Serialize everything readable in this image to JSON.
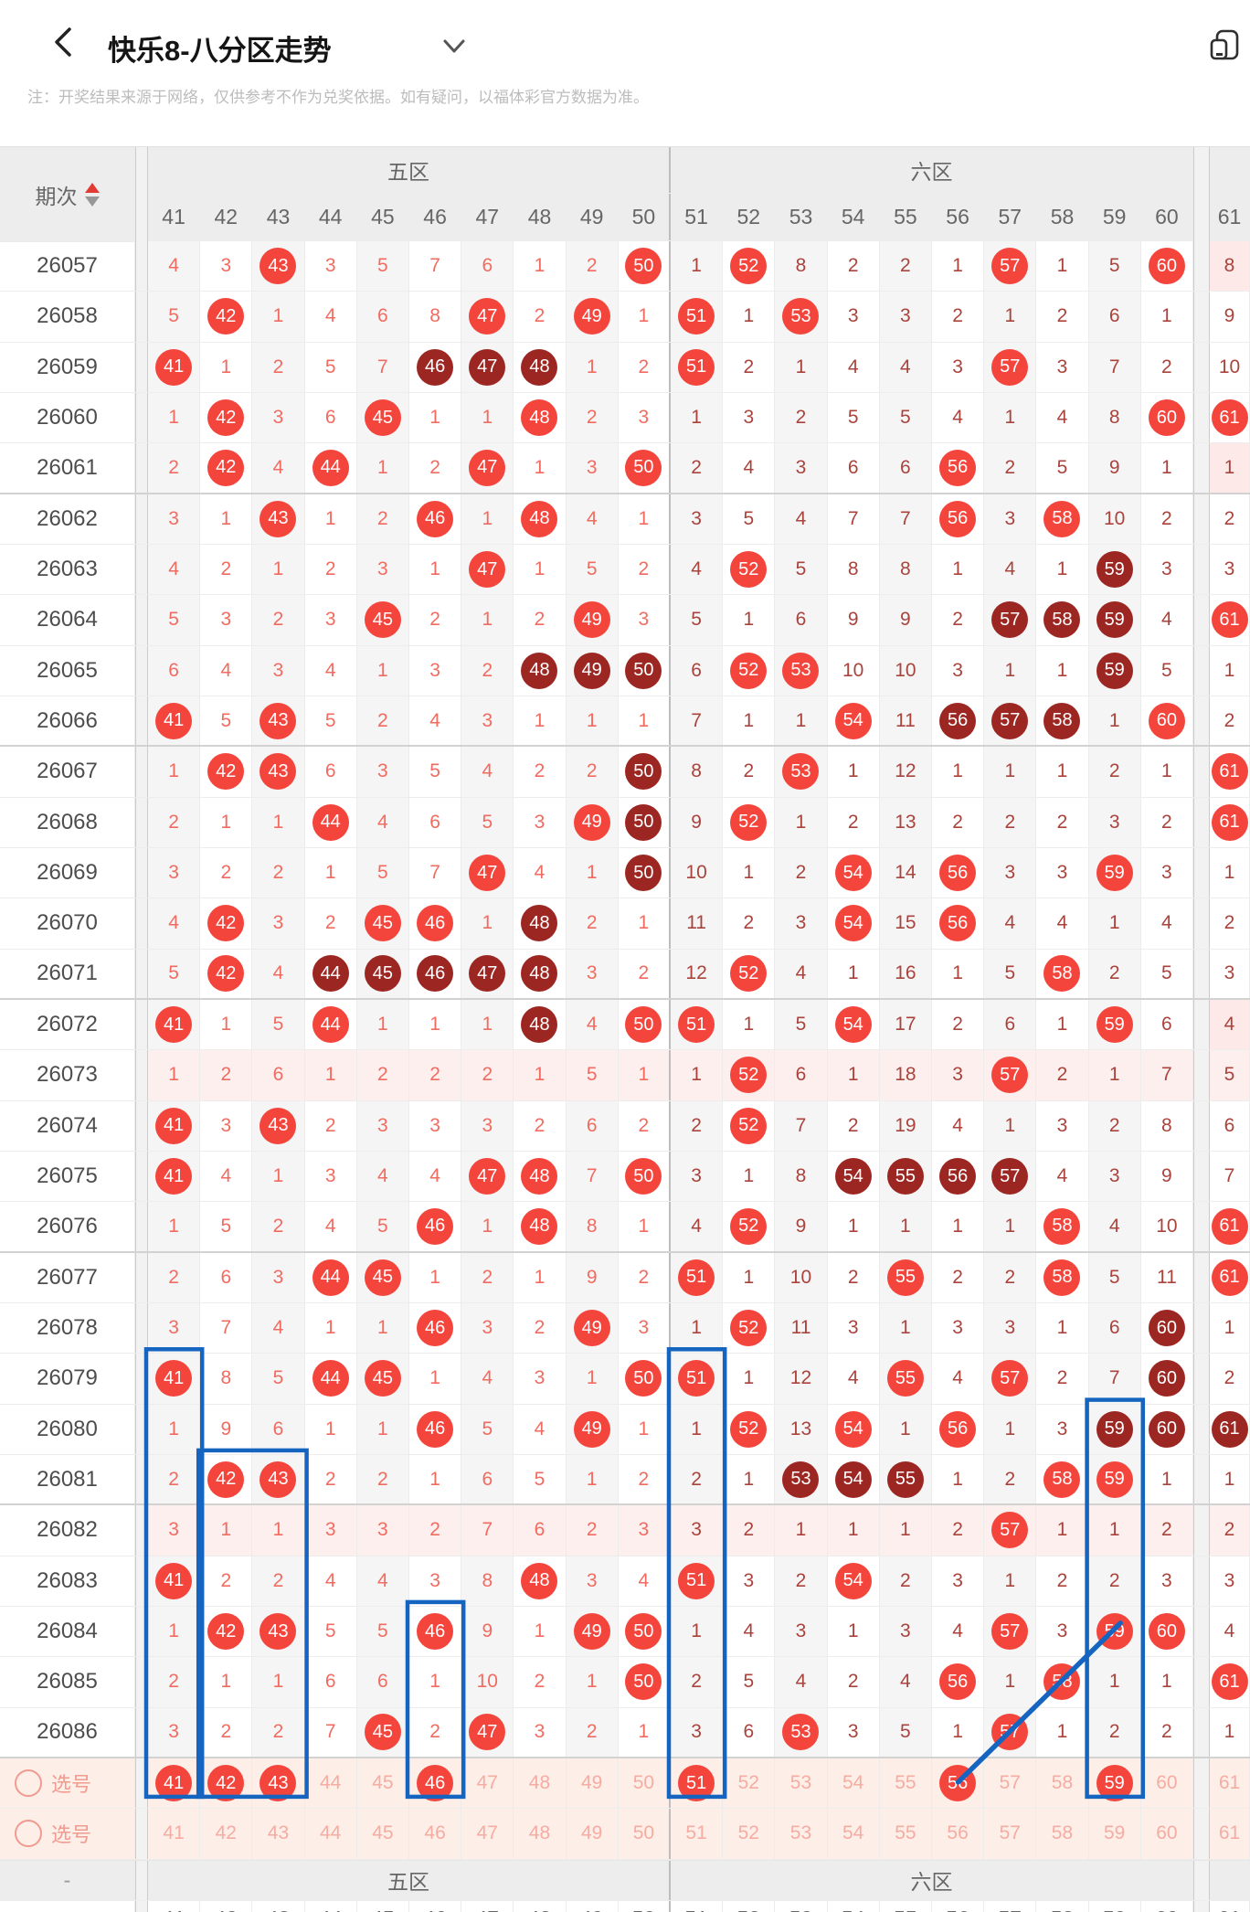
{
  "header": {
    "title": "快乐8-八分区走势"
  },
  "notice": "注：开奖结果来源于网络，仅供参考不作为兑奖依据。如有疑问，以福体彩官方数据为准。",
  "table": {
    "period_header": "期次",
    "zones": [
      {
        "label": "五区",
        "col_from": 41,
        "col_to": 50
      },
      {
        "label": "六区",
        "col_from": 51,
        "col_to": 61
      }
    ],
    "columns": [
      "41",
      "42",
      "43",
      "44",
      "45",
      "46",
      "47",
      "48",
      "49",
      "50",
      "51",
      "52",
      "53",
      "54",
      "55",
      "56",
      "57",
      "58",
      "59",
      "60",
      "61"
    ],
    "footer_dash": "-",
    "rows": [
      {
        "period": "26057",
        "pink61": true,
        "cells": [
          "4",
          "3",
          "h43",
          "3",
          "5",
          "7",
          "6",
          "1",
          "2",
          "h50",
          "1",
          "h52",
          "8",
          "2",
          "2",
          "1",
          "h57",
          "1",
          "5",
          "h60",
          "8"
        ]
      },
      {
        "period": "26058",
        "cells": [
          "5",
          "h42",
          "1",
          "4",
          "6",
          "8",
          "h47",
          "2",
          "h49",
          "1",
          "h51",
          "1",
          "h53",
          "3",
          "3",
          "2",
          "1",
          "2",
          "6",
          "1",
          "9"
        ]
      },
      {
        "period": "26059",
        "cells": [
          "h41",
          "1",
          "2",
          "5",
          "7",
          "d46",
          "d47",
          "d48",
          "1",
          "2",
          "h51",
          "2",
          "1",
          "4",
          "4",
          "3",
          "h57",
          "3",
          "7",
          "2",
          "10"
        ]
      },
      {
        "period": "26060",
        "cells": [
          "1",
          "h42",
          "3",
          "6",
          "h45",
          "1",
          "1",
          "h48",
          "2",
          "3",
          "1",
          "3",
          "2",
          "5",
          "5",
          "4",
          "1",
          "4",
          "8",
          "h60",
          "h61"
        ]
      },
      {
        "period": "26061",
        "pink61": true,
        "sep": true,
        "cells": [
          "2",
          "h42",
          "4",
          "h44",
          "1",
          "2",
          "h47",
          "1",
          "3",
          "h50",
          "2",
          "4",
          "3",
          "6",
          "6",
          "h56",
          "2",
          "5",
          "9",
          "1",
          "1"
        ]
      },
      {
        "period": "26062",
        "cells": [
          "3",
          "1",
          "h43",
          "1",
          "2",
          "h46",
          "1",
          "h48",
          "4",
          "1",
          "3",
          "5",
          "4",
          "7",
          "7",
          "h56",
          "3",
          "h58",
          "10",
          "2",
          "2"
        ]
      },
      {
        "period": "26063",
        "cells": [
          "4",
          "2",
          "1",
          "2",
          "3",
          "1",
          "h47",
          "1",
          "5",
          "2",
          "4",
          "h52",
          "5",
          "8",
          "8",
          "1",
          "4",
          "1",
          "d59",
          "3",
          "3"
        ]
      },
      {
        "period": "26064",
        "cells": [
          "5",
          "3",
          "2",
          "3",
          "h45",
          "2",
          "1",
          "2",
          "h49",
          "3",
          "5",
          "1",
          "6",
          "9",
          "9",
          "2",
          "d57",
          "d58",
          "d59",
          "4",
          "h61"
        ]
      },
      {
        "period": "26065",
        "cells": [
          "6",
          "4",
          "3",
          "4",
          "1",
          "3",
          "2",
          "d48",
          "d49",
          "d50",
          "6",
          "h52",
          "h53",
          "10",
          "10",
          "3",
          "1",
          "1",
          "d59",
          "5",
          "1"
        ]
      },
      {
        "period": "26066",
        "sep": true,
        "cells": [
          "h41",
          "5",
          "h43",
          "5",
          "2",
          "4",
          "3",
          "1",
          "1",
          "1",
          "7",
          "1",
          "1",
          "h54",
          "11",
          "d56",
          "d57",
          "d58",
          "1",
          "h60",
          "2"
        ]
      },
      {
        "period": "26067",
        "cells": [
          "1",
          "h42",
          "h43",
          "6",
          "3",
          "5",
          "4",
          "2",
          "2",
          "d50",
          "8",
          "2",
          "h53",
          "1",
          "12",
          "1",
          "1",
          "1",
          "2",
          "1",
          "h61"
        ]
      },
      {
        "period": "26068",
        "cells": [
          "2",
          "1",
          "1",
          "h44",
          "4",
          "6",
          "5",
          "3",
          "h49",
          "d50",
          "9",
          "h52",
          "1",
          "2",
          "13",
          "2",
          "2",
          "2",
          "3",
          "2",
          "h61"
        ]
      },
      {
        "period": "26069",
        "cells": [
          "3",
          "2",
          "2",
          "1",
          "5",
          "7",
          "h47",
          "4",
          "1",
          "d50",
          "10",
          "1",
          "2",
          "h54",
          "14",
          "h56",
          "3",
          "3",
          "h59",
          "3",
          "1"
        ]
      },
      {
        "period": "26070",
        "cells": [
          "4",
          "h42",
          "3",
          "2",
          "h45",
          "h46",
          "1",
          "d48",
          "2",
          "1",
          "11",
          "2",
          "3",
          "h54",
          "15",
          "h56",
          "4",
          "4",
          "1",
          "4",
          "2"
        ]
      },
      {
        "period": "26071",
        "sep": true,
        "cells": [
          "5",
          "h42",
          "4",
          "d44",
          "d45",
          "d46",
          "d47",
          "d48",
          "3",
          "2",
          "12",
          "h52",
          "4",
          "1",
          "16",
          "1",
          "5",
          "h58",
          "2",
          "5",
          "3"
        ]
      },
      {
        "period": "26072",
        "pink61": true,
        "cells": [
          "h41",
          "1",
          "5",
          "h44",
          "1",
          "1",
          "1",
          "d48",
          "4",
          "h50",
          "h51",
          "1",
          "5",
          "h54",
          "17",
          "2",
          "6",
          "1",
          "h59",
          "6",
          "4"
        ]
      },
      {
        "period": "26073",
        "highlight": true,
        "cells": [
          "1",
          "2",
          "6",
          "1",
          "2",
          "2",
          "2",
          "1",
          "5",
          "1",
          "1",
          "h52",
          "6",
          "1",
          "18",
          "3",
          "h57",
          "2",
          "1",
          "7",
          "5"
        ]
      },
      {
        "period": "26074",
        "cells": [
          "h41",
          "3",
          "h43",
          "2",
          "3",
          "3",
          "3",
          "2",
          "6",
          "2",
          "2",
          "h52",
          "7",
          "2",
          "19",
          "4",
          "1",
          "3",
          "2",
          "8",
          "6"
        ]
      },
      {
        "period": "26075",
        "cells": [
          "h41",
          "4",
          "1",
          "3",
          "4",
          "4",
          "h47",
          "h48",
          "7",
          "h50",
          "3",
          "1",
          "8",
          "d54",
          "d55",
          "d56",
          "d57",
          "4",
          "3",
          "9",
          "7"
        ]
      },
      {
        "period": "26076",
        "sep": true,
        "cells": [
          "1",
          "5",
          "2",
          "4",
          "5",
          "h46",
          "1",
          "h48",
          "8",
          "1",
          "4",
          "h52",
          "9",
          "1",
          "1",
          "1",
          "1",
          "h58",
          "4",
          "10",
          "h61"
        ]
      },
      {
        "period": "26077",
        "cells": [
          "2",
          "6",
          "3",
          "h44",
          "h45",
          "1",
          "2",
          "1",
          "9",
          "2",
          "h51",
          "1",
          "10",
          "2",
          "h55",
          "2",
          "2",
          "h58",
          "5",
          "11",
          "h61"
        ]
      },
      {
        "period": "26078",
        "cells": [
          "3",
          "7",
          "4",
          "1",
          "1",
          "h46",
          "3",
          "2",
          "h49",
          "3",
          "1",
          "h52",
          "11",
          "3",
          "1",
          "3",
          "3",
          "1",
          "6",
          "d60",
          "1"
        ]
      },
      {
        "period": "26079",
        "cells": [
          "h41",
          "8",
          "5",
          "h44",
          "h45",
          "1",
          "4",
          "3",
          "1",
          "h50",
          "h51",
          "1",
          "12",
          "4",
          "h55",
          "4",
          "h57",
          "2",
          "7",
          "d60",
          "2"
        ]
      },
      {
        "period": "26080",
        "cells": [
          "1",
          "9",
          "6",
          "1",
          "1",
          "h46",
          "5",
          "4",
          "h49",
          "1",
          "1",
          "h52",
          "13",
          "h54",
          "1",
          "h56",
          "1",
          "3",
          "d59",
          "d60",
          "d61"
        ]
      },
      {
        "period": "26081",
        "sep": true,
        "cells": [
          "2",
          "h42",
          "h43",
          "2",
          "2",
          "1",
          "6",
          "5",
          "1",
          "2",
          "2",
          "1",
          "d53",
          "d54",
          "d55",
          "1",
          "2",
          "h58",
          "h59",
          "1",
          "1"
        ]
      },
      {
        "period": "26082",
        "highlight": true,
        "cells": [
          "3",
          "1",
          "1",
          "3",
          "3",
          "2",
          "7",
          "6",
          "2",
          "3",
          "3",
          "2",
          "1",
          "1",
          "1",
          "2",
          "h57",
          "1",
          "1",
          "2",
          "2"
        ]
      },
      {
        "period": "26083",
        "cells": [
          "h41",
          "2",
          "2",
          "4",
          "4",
          "3",
          "8",
          "h48",
          "3",
          "4",
          "h51",
          "3",
          "2",
          "h54",
          "2",
          "3",
          "1",
          "2",
          "2",
          "3",
          "3"
        ]
      },
      {
        "period": "26084",
        "cells": [
          "1",
          "h42",
          "h43",
          "5",
          "5",
          "h46",
          "9",
          "1",
          "h49",
          "h50",
          "1",
          "4",
          "3",
          "1",
          "3",
          "4",
          "h57",
          "3",
          "h59",
          "h60",
          "4"
        ]
      },
      {
        "period": "26085",
        "cells": [
          "2",
          "1",
          "1",
          "6",
          "6",
          "1",
          "10",
          "2",
          "1",
          "h50",
          "2",
          "5",
          "4",
          "2",
          "4",
          "h56",
          "1",
          "h58",
          "1",
          "1",
          "h61"
        ]
      },
      {
        "period": "26086",
        "sep": true,
        "cells": [
          "3",
          "2",
          "2",
          "7",
          "h45",
          "2",
          "h47",
          "3",
          "2",
          "1",
          "3",
          "6",
          "h53",
          "3",
          "5",
          "1",
          "h57",
          "1",
          "2",
          "2",
          "1"
        ]
      }
    ],
    "select_rows": [
      {
        "label": "选号",
        "picked": [
          41,
          42,
          43,
          46,
          51,
          56,
          59
        ]
      },
      {
        "label": "选号",
        "picked": []
      }
    ]
  },
  "annotations": {
    "color": "#1565c0",
    "boxes": [
      {
        "col_start": 41,
        "col_end": 41,
        "row_start": "26079"
      },
      {
        "col_start": 42,
        "col_end": 43,
        "row_start": "26081"
      },
      {
        "col_start": 46,
        "col_end": 46,
        "row_start": "26084"
      },
      {
        "col_start": 51,
        "col_end": 51,
        "row_start": "26079"
      },
      {
        "col_start": 59,
        "col_end": 59,
        "row_start": "26080"
      }
    ],
    "line": {
      "from_col": 56,
      "from_row": "select1",
      "to_col": 59,
      "to_row": "26084"
    }
  },
  "colors": {
    "hit": "#f4453c",
    "hit_consecutive": "#9c2722",
    "miss_zone5": "#f26b60",
    "miss_zone6": "#aa433c",
    "annotation_blue": "#1565c0"
  }
}
